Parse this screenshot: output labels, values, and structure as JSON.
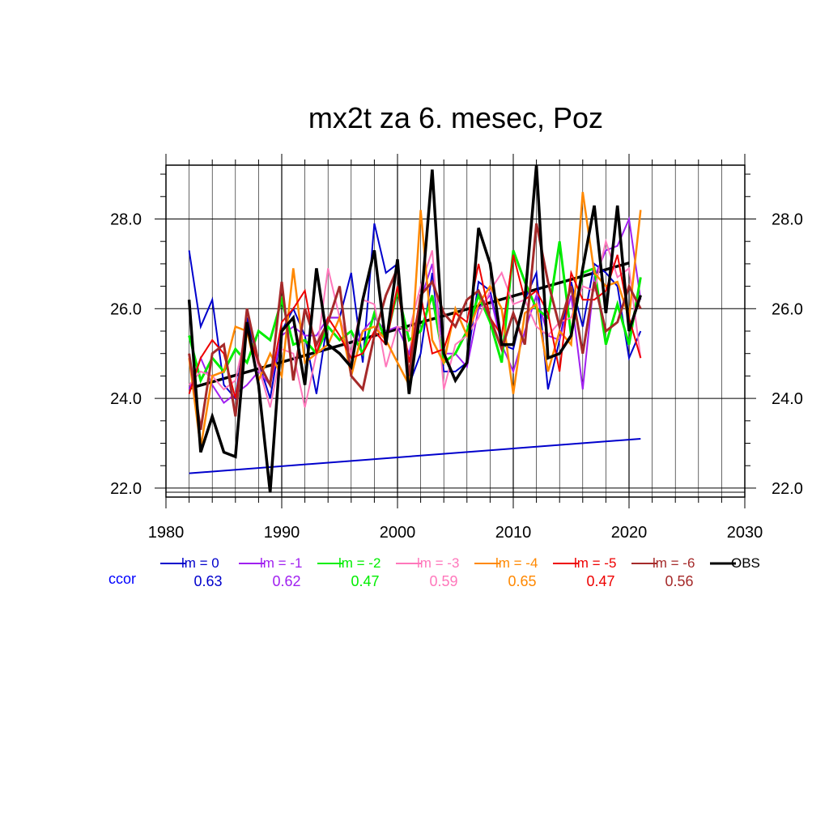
{
  "chart_data": {
    "type": "line",
    "title": "mx2t za 6. mesec, Poz",
    "xlabel": "",
    "ylabel": "",
    "xlim": [
      1980,
      2030
    ],
    "ylim": [
      21.8,
      29.2
    ],
    "x_ticks": [
      "1980",
      "1990",
      "2000",
      "2010",
      "2020",
      "2030"
    ],
    "x_tick_values": [
      1980,
      1990,
      2000,
      2010,
      2020,
      2030
    ],
    "y_ticks": [
      "22.0",
      "24.0",
      "26.0",
      "28.0"
    ],
    "y_tick_values": [
      22,
      24,
      26,
      28
    ],
    "grid": true,
    "x": [
      1982,
      1983,
      1984,
      1985,
      1986,
      1987,
      1988,
      1989,
      1990,
      1991,
      1992,
      1993,
      1994,
      1995,
      1996,
      1997,
      1998,
      1999,
      2000,
      2001,
      2002,
      2003,
      2004,
      2005,
      2006,
      2007,
      2008,
      2009,
      2010,
      2011,
      2012,
      2013,
      2014,
      2015,
      2016,
      2017,
      2018,
      2019,
      2020,
      2021
    ],
    "series": [
      {
        "name": "lm = 0",
        "color": "#0000cc",
        "width": 2,
        "values": [
          27.3,
          25.6,
          26.2,
          24.3,
          24.0,
          25.8,
          24.8,
          24.0,
          25.5,
          26.0,
          25.4,
          24.1,
          25.8,
          25.8,
          26.8,
          24.8,
          27.9,
          26.8,
          27.0,
          24.3,
          25.0,
          26.8,
          24.6,
          24.6,
          24.8,
          26.6,
          26.4,
          25.2,
          25.1,
          26.2,
          26.8,
          24.2,
          25.3,
          26.6,
          25.6,
          27.0,
          26.8,
          26.5,
          24.9,
          25.5
        ]
      },
      {
        "name": "lm = -1",
        "color": "#a020f0",
        "width": 2,
        "values": [
          24.2,
          24.9,
          24.3,
          23.9,
          24.1,
          24.3,
          24.6,
          24.3,
          25.4,
          25.6,
          25.4,
          25.4,
          25.8,
          25.8,
          25.0,
          25.5,
          25.8,
          25.5,
          25.6,
          25.0,
          26.2,
          27.0,
          25.0,
          25.0,
          24.7,
          26.0,
          26.3,
          25.2,
          24.6,
          25.5,
          26.3,
          25.4,
          25.3,
          26.3,
          24.2,
          26.7,
          27.3,
          27.4,
          28.0,
          26.2
        ]
      },
      {
        "name": "lm = -2",
        "color": "#00ee00",
        "width": 3,
        "values": [
          25.4,
          24.4,
          24.9,
          24.6,
          25.1,
          24.8,
          25.5,
          25.3,
          26.2,
          25.2,
          25.3,
          25.0,
          25.6,
          25.3,
          25.5,
          25.0,
          25.9,
          25.3,
          26.4,
          25.3,
          25.5,
          26.3,
          24.8,
          25.0,
          25.5,
          26.3,
          25.7,
          24.8,
          27.3,
          26.6,
          26.0,
          25.8,
          27.5,
          25.4,
          26.8,
          26.9,
          25.2,
          26.1,
          25.2,
          26.7
        ]
      },
      {
        "name": "lm = -3",
        "color": "#ff77bb",
        "width": 2,
        "values": [
          24.3,
          24.6,
          24.5,
          24.2,
          24.4,
          25.6,
          24.7,
          23.8,
          25.1,
          25.0,
          23.8,
          25.0,
          26.9,
          25.8,
          25.0,
          26.2,
          26.1,
          24.7,
          25.6,
          25.5,
          26.5,
          27.3,
          24.2,
          25.2,
          25.4,
          25.8,
          26.4,
          26.8,
          26.1,
          26.2,
          25.6,
          25.4,
          25.7,
          25.8,
          26.5,
          26.4,
          27.5,
          26.7,
          26.9,
          24.9
        ]
      },
      {
        "name": "lm = -4",
        "color": "#ff8800",
        "width": 2.5,
        "values": [
          24.9,
          22.9,
          24.5,
          24.6,
          25.6,
          25.5,
          24.4,
          25.0,
          24.5,
          26.9,
          24.8,
          25.0,
          25.2,
          25.8,
          24.5,
          25.5,
          25.6,
          25.3,
          24.8,
          24.3,
          28.2,
          25.3,
          24.8,
          26.0,
          25.4,
          26.1,
          26.5,
          26.0,
          24.1,
          25.9,
          26.1,
          24.6,
          25.5,
          25.2,
          28.6,
          26.8,
          26.5,
          26.6,
          25.8,
          28.2
        ]
      },
      {
        "name": "lm = -5",
        "color": "#ee0000",
        "width": 2,
        "values": [
          24.1,
          24.9,
          25.3,
          25.0,
          24.0,
          25.5,
          24.8,
          24.3,
          25.7,
          26.0,
          26.4,
          25.0,
          25.8,
          25.4,
          24.9,
          25.0,
          25.5,
          25.2,
          26.5,
          24.8,
          26.3,
          25.0,
          25.1,
          25.9,
          25.7,
          27.0,
          25.8,
          25.4,
          27.2,
          26.2,
          26.4,
          25.9,
          24.6,
          26.8,
          26.2,
          26.2,
          26.4,
          27.2,
          25.8,
          24.9
        ]
      },
      {
        "name": "lm = -6",
        "color": "#a52a2a",
        "width": 3,
        "values": [
          25.0,
          23.3,
          25.0,
          25.2,
          23.6,
          26.0,
          24.8,
          24.3,
          26.6,
          24.4,
          26.0,
          25.2,
          25.7,
          26.5,
          24.5,
          24.2,
          25.4,
          26.3,
          26.9,
          24.5,
          26.3,
          26.6,
          25.9,
          25.6,
          26.2,
          26.4,
          25.8,
          25.1,
          25.9,
          25.2,
          27.9,
          26.6,
          25.6,
          26.5,
          25.0,
          26.6,
          25.5,
          25.7,
          26.5,
          26.0
        ]
      },
      {
        "name": "OBS",
        "color": "#000000",
        "width": 3.5,
        "values": [
          26.2,
          22.8,
          23.6,
          22.8,
          22.7,
          25.7,
          24.3,
          21.9,
          25.5,
          25.8,
          24.3,
          26.9,
          25.2,
          25.0,
          24.7,
          26.2,
          27.3,
          25.2,
          27.1,
          24.1,
          26.0,
          29.1,
          25.0,
          24.4,
          24.8,
          27.8,
          27.0,
          25.2,
          25.2,
          26.2,
          29.2,
          24.9,
          25.0,
          25.4,
          26.9,
          28.3,
          25.9,
          28.3,
          25.5,
          26.3
        ]
      }
    ],
    "trend_lines": [
      {
        "name": "OBS trend",
        "color": "#000000",
        "width": 3.5,
        "x": [
          1982,
          2020
        ],
        "y": [
          24.22,
          27.02
        ]
      },
      {
        "name": "lm = 0 trend",
        "color": "#0000cc",
        "width": 2,
        "x": [
          1982,
          2021
        ],
        "y": [
          22.33,
          23.1
        ]
      }
    ]
  },
  "legend": {
    "placement": "bottom",
    "entries": [
      {
        "label": "lm = 0",
        "color": "#0000cc",
        "ccor": "0.63"
      },
      {
        "label": "lm = -1",
        "color": "#a020f0",
        "ccor": "0.62"
      },
      {
        "label": "lm = -2",
        "color": "#00ee00",
        "ccor": "0.47"
      },
      {
        "label": "lm = -3",
        "color": "#ff77bb",
        "ccor": "0.59"
      },
      {
        "label": "lm = -4",
        "color": "#ff8800",
        "ccor": "0.65"
      },
      {
        "label": "lm = -5",
        "color": "#ee0000",
        "ccor": "0.47"
      },
      {
        "label": "lm = -6",
        "color": "#a52a2a",
        "ccor": "0.56"
      },
      {
        "label": "OBS",
        "color": "#000000",
        "ccor": ""
      }
    ],
    "ccor_label": "ccor",
    "ccor_label_color": "#0000ff"
  }
}
